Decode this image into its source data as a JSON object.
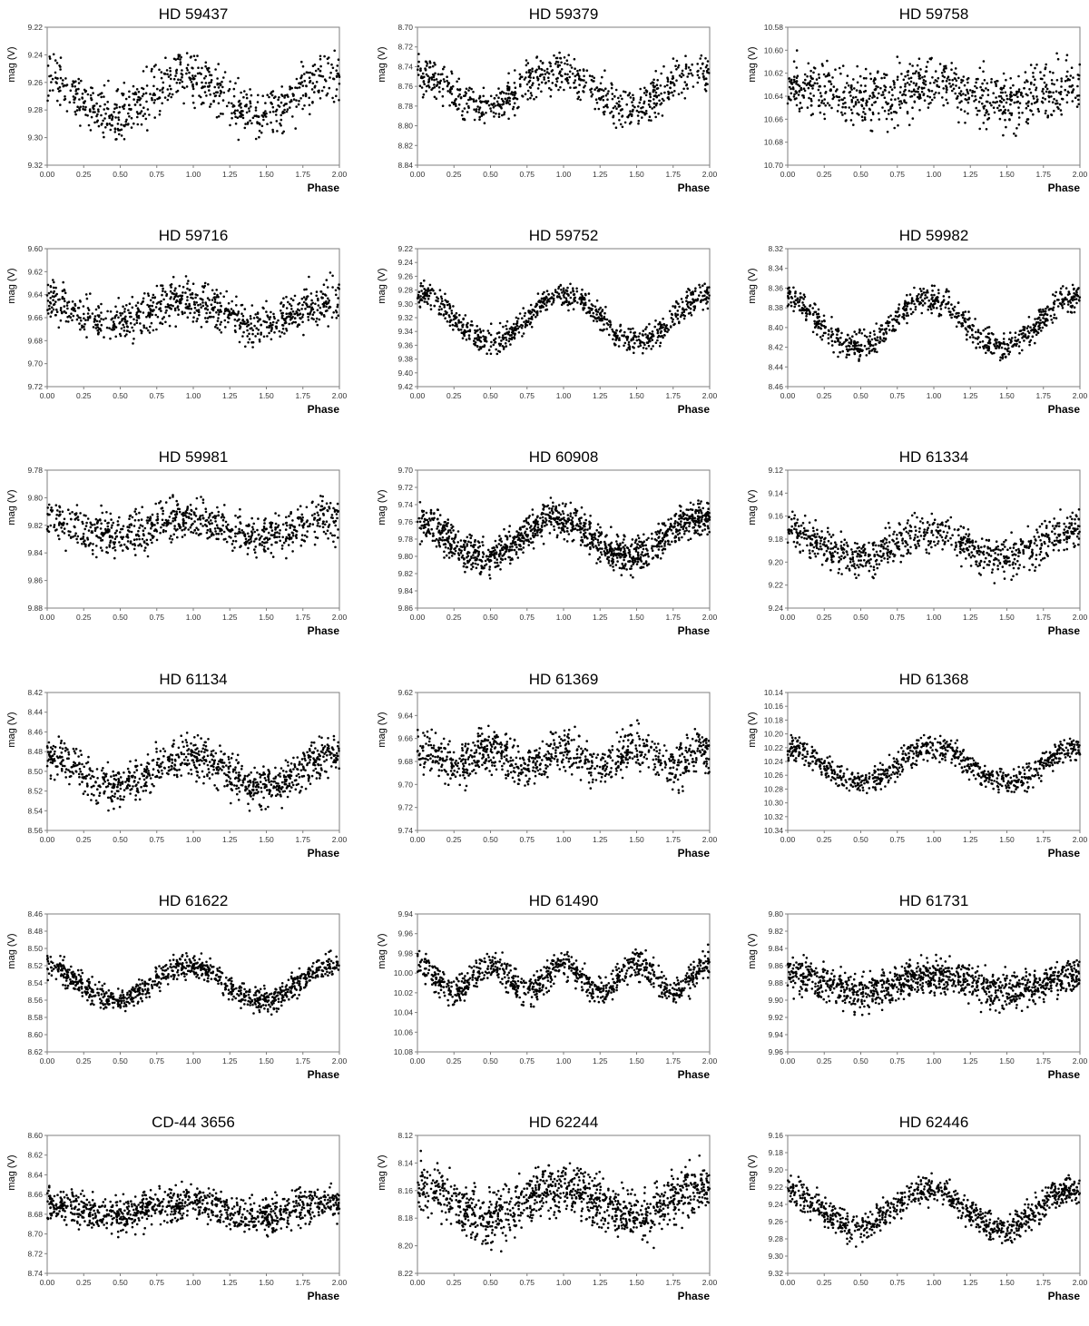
{
  "figure": {
    "xlabel": "Phase",
    "ylabel": "mag (V)",
    "colors": {
      "points": "#000000",
      "frame": "#7f7f7f",
      "background": "#ffffff"
    }
  },
  "chart_data": [
    {
      "type": "scatter",
      "title": "HD 59437",
      "xlabel": "Phase",
      "ylabel": "mag (V)",
      "xlim": [
        0,
        2
      ],
      "ylim": [
        9.32,
        9.22
      ],
      "yticks": [
        "9.22",
        "9.24",
        "9.26",
        "9.28",
        "9.30",
        "9.32"
      ],
      "xticks": [
        "0.00",
        "0.25",
        "0.50",
        "0.75",
        "1.00",
        "1.25",
        "1.50",
        "1.75",
        "2.00"
      ],
      "curve": {
        "mean": 9.27,
        "amplitude": 0.014,
        "peak_phase": 0.95,
        "harmonic": 1,
        "scatter": 0.011,
        "n_points": 700
      }
    },
    {
      "type": "scatter",
      "title": "HD 59379",
      "xlabel": "Phase",
      "ylabel": "mag (V)",
      "xlim": [
        0,
        2
      ],
      "ylim": [
        8.84,
        8.7
      ],
      "yticks": [
        "8.70",
        "8.72",
        "8.74",
        "8.76",
        "8.78",
        "8.80",
        "8.82",
        "8.84"
      ],
      "xticks": [
        "0.00",
        "0.25",
        "0.50",
        "0.75",
        "1.00",
        "1.25",
        "1.50",
        "1.75",
        "2.00"
      ],
      "curve": {
        "mean": 8.763,
        "amplitude": 0.018,
        "peak_phase": 0.95,
        "harmonic": 1,
        "scatter": 0.012,
        "n_points": 700
      }
    },
    {
      "type": "scatter",
      "title": "HD 59758",
      "xlabel": "Phase",
      "ylabel": "mag (V)",
      "xlim": [
        0,
        2
      ],
      "ylim": [
        10.7,
        10.58
      ],
      "yticks": [
        "10.58",
        "10.60",
        "10.62",
        "10.64",
        "10.66",
        "10.68",
        "10.70"
      ],
      "xticks": [
        "0.00",
        "0.25",
        "0.50",
        "0.75",
        "1.00",
        "1.25",
        "1.50",
        "1.75",
        "2.00"
      ],
      "curve": {
        "mean": 10.637,
        "amplitude": 0.008,
        "peak_phase": 1.0,
        "harmonic": 1,
        "scatter": 0.014,
        "n_points": 800
      }
    },
    {
      "type": "scatter",
      "title": "HD 59716",
      "xlabel": "Phase",
      "ylabel": "mag (V)",
      "xlim": [
        0,
        2
      ],
      "ylim": [
        9.72,
        9.6
      ],
      "yticks": [
        "9.60",
        "9.62",
        "9.64",
        "9.66",
        "9.68",
        "9.70",
        "9.72"
      ],
      "xticks": [
        "0.00",
        "0.25",
        "0.50",
        "0.75",
        "1.00",
        "1.25",
        "1.50",
        "1.75",
        "2.00"
      ],
      "curve": {
        "mean": 9.655,
        "amplitude": 0.01,
        "peak_phase": 0.95,
        "harmonic": 1,
        "scatter": 0.011,
        "n_points": 800
      }
    },
    {
      "type": "scatter",
      "title": "HD 59752",
      "xlabel": "Phase",
      "ylabel": "mag (V)",
      "xlim": [
        0,
        2
      ],
      "ylim": [
        9.42,
        9.22
      ],
      "yticks": [
        "9.22",
        "9.24",
        "9.26",
        "9.28",
        "9.30",
        "9.32",
        "9.34",
        "9.36",
        "9.38",
        "9.40",
        "9.42"
      ],
      "xticks": [
        "0.00",
        "0.25",
        "0.50",
        "0.75",
        "1.00",
        "1.25",
        "1.50",
        "1.75",
        "2.00"
      ],
      "curve": {
        "mean": 9.32,
        "amplitude": 0.035,
        "peak_phase": 1.0,
        "harmonic": 1,
        "scatter": 0.011,
        "n_points": 800
      }
    },
    {
      "type": "scatter",
      "title": "HD 59982",
      "xlabel": "Phase",
      "ylabel": "mag (V)",
      "xlim": [
        0,
        2
      ],
      "ylim": [
        8.46,
        8.32
      ],
      "yticks": [
        "8.32",
        "8.34",
        "8.36",
        "8.38",
        "8.40",
        "8.42",
        "8.44",
        "8.46"
      ],
      "xticks": [
        "0.00",
        "0.25",
        "0.50",
        "0.75",
        "1.00",
        "1.25",
        "1.50",
        "1.75",
        "2.00"
      ],
      "curve": {
        "mean": 8.395,
        "amplitude": 0.025,
        "peak_phase": 0.97,
        "harmonic": 1,
        "scatter": 0.008,
        "n_points": 800
      }
    },
    {
      "type": "scatter",
      "title": "HD 59981",
      "xlabel": "Phase",
      "ylabel": "mag (V)",
      "xlim": [
        0,
        2
      ],
      "ylim": [
        9.88,
        9.78
      ],
      "yticks": [
        "9.78",
        "9.80",
        "9.82",
        "9.84",
        "9.86",
        "9.88"
      ],
      "xticks": [
        "0.00",
        "0.25",
        "0.50",
        "0.75",
        "1.00",
        "1.25",
        "1.50",
        "1.75",
        "2.00"
      ],
      "curve": {
        "mean": 9.821,
        "amplitude": 0.006,
        "peak_phase": 0.95,
        "harmonic": 1,
        "scatter": 0.009,
        "n_points": 800
      }
    },
    {
      "type": "scatter",
      "title": "HD 60908",
      "xlabel": "Phase",
      "ylabel": "mag (V)",
      "xlim": [
        0,
        2
      ],
      "ylim": [
        9.86,
        9.7
      ],
      "yticks": [
        "9.70",
        "9.72",
        "9.74",
        "9.76",
        "9.78",
        "9.80",
        "9.82",
        "9.84",
        "9.86"
      ],
      "xticks": [
        "0.00",
        "0.25",
        "0.50",
        "0.75",
        "1.00",
        "1.25",
        "1.50",
        "1.75",
        "2.00"
      ],
      "curve": {
        "mean": 9.778,
        "amplitude": 0.022,
        "peak_phase": 0.95,
        "harmonic": 1,
        "scatter": 0.012,
        "n_points": 1200
      }
    },
    {
      "type": "scatter",
      "title": "HD 61334",
      "xlabel": "Phase",
      "ylabel": "mag (V)",
      "xlim": [
        0,
        2
      ],
      "ylim": [
        9.24,
        9.12
      ],
      "yticks": [
        "9.12",
        "9.14",
        "9.16",
        "9.18",
        "9.20",
        "9.22",
        "9.24"
      ],
      "xticks": [
        "0.00",
        "0.25",
        "0.50",
        "0.75",
        "1.00",
        "1.25",
        "1.50",
        "1.75",
        "2.00"
      ],
      "curve": {
        "mean": 9.185,
        "amplitude": 0.012,
        "peak_phase": 0.97,
        "harmonic": 1,
        "scatter": 0.01,
        "n_points": 800
      }
    },
    {
      "type": "scatter",
      "title": "HD 61134",
      "xlabel": "Phase",
      "ylabel": "mag (V)",
      "xlim": [
        0,
        2
      ],
      "ylim": [
        8.56,
        8.42
      ],
      "yticks": [
        "8.42",
        "8.44",
        "8.46",
        "8.48",
        "8.50",
        "8.52",
        "8.54",
        "8.56"
      ],
      "xticks": [
        "0.00",
        "0.25",
        "0.50",
        "0.75",
        "1.00",
        "1.25",
        "1.50",
        "1.75",
        "2.00"
      ],
      "curve": {
        "mean": 8.5,
        "amplitude": 0.016,
        "peak_phase": 0.97,
        "harmonic": 1,
        "scatter": 0.012,
        "n_points": 900
      }
    },
    {
      "type": "scatter",
      "title": "HD 61369",
      "xlabel": "Phase",
      "ylabel": "mag (V)",
      "xlim": [
        0,
        2
      ],
      "ylim": [
        9.74,
        9.62
      ],
      "yticks": [
        "9.62",
        "9.64",
        "9.66",
        "9.68",
        "9.70",
        "9.72",
        "9.74"
      ],
      "xticks": [
        "0.00",
        "0.25",
        "0.50",
        "0.75",
        "1.00",
        "1.25",
        "1.50",
        "1.75",
        "2.00"
      ],
      "curve": {
        "mean": 9.677,
        "amplitude": 0.008,
        "peak_phase": 1.0,
        "harmonic": 2,
        "scatter": 0.011,
        "n_points": 900
      }
    },
    {
      "type": "scatter",
      "title": "HD 61368",
      "xlabel": "Phase",
      "ylabel": "mag (V)",
      "xlim": [
        0,
        2
      ],
      "ylim": [
        10.34,
        10.14
      ],
      "yticks": [
        "10.14",
        "10.16",
        "10.18",
        "10.20",
        "10.22",
        "10.24",
        "10.26",
        "10.28",
        "10.30",
        "10.32",
        "10.34"
      ],
      "xticks": [
        "0.00",
        "0.25",
        "0.50",
        "0.75",
        "1.00",
        "1.25",
        "1.50",
        "1.75",
        "2.00"
      ],
      "curve": {
        "mean": 10.245,
        "amplitude": 0.025,
        "peak_phase": 1.0,
        "harmonic": 1,
        "scatter": 0.01,
        "n_points": 800
      }
    },
    {
      "type": "scatter",
      "title": "HD 61622",
      "xlabel": "Phase",
      "ylabel": "mag (V)",
      "xlim": [
        0,
        2
      ],
      "ylim": [
        8.62,
        8.46
      ],
      "yticks": [
        "8.46",
        "8.48",
        "8.50",
        "8.52",
        "8.54",
        "8.56",
        "8.58",
        "8.60",
        "8.62"
      ],
      "xticks": [
        "0.00",
        "0.25",
        "0.50",
        "0.75",
        "1.00",
        "1.25",
        "1.50",
        "1.75",
        "2.00"
      ],
      "curve": {
        "mean": 8.54,
        "amplitude": 0.02,
        "peak_phase": 0.97,
        "harmonic": 1,
        "scatter": 0.008,
        "n_points": 900
      }
    },
    {
      "type": "scatter",
      "title": "HD 61490",
      "xlabel": "Phase",
      "ylabel": "mag (V)",
      "xlim": [
        0,
        2
      ],
      "ylim": [
        10.08,
        9.94
      ],
      "yticks": [
        "9.94",
        "9.96",
        "9.98",
        "10.00",
        "10.02",
        "10.04",
        "10.06",
        "10.08"
      ],
      "xticks": [
        "0.00",
        "0.25",
        "0.50",
        "0.75",
        "1.00",
        "1.25",
        "1.50",
        "1.75",
        "2.00"
      ],
      "curve": {
        "mean": 10.005,
        "amplitude": 0.014,
        "peak_phase": 1.0,
        "harmonic": 2,
        "scatter": 0.009,
        "n_points": 900
      }
    },
    {
      "type": "scatter",
      "title": "HD 61731",
      "xlabel": "Phase",
      "ylabel": "mag (V)",
      "xlim": [
        0,
        2
      ],
      "ylim": [
        9.96,
        9.8
      ],
      "yticks": [
        "9.80",
        "9.82",
        "9.84",
        "9.86",
        "9.88",
        "9.90",
        "9.92",
        "9.94",
        "9.96"
      ],
      "xticks": [
        "0.00",
        "0.25",
        "0.50",
        "0.75",
        "1.00",
        "1.25",
        "1.50",
        "1.75",
        "2.00"
      ],
      "curve": {
        "mean": 9.88,
        "amplitude": 0.01,
        "peak_phase": 1.0,
        "harmonic": 1,
        "scatter": 0.012,
        "n_points": 1100
      }
    },
    {
      "type": "scatter",
      "title": "CD-44 3656",
      "xlabel": "Phase",
      "ylabel": "mag (V)",
      "xlim": [
        0,
        2
      ],
      "ylim": [
        8.74,
        8.6
      ],
      "yticks": [
        "8.60",
        "8.62",
        "8.64",
        "8.66",
        "8.68",
        "8.70",
        "8.72",
        "8.74"
      ],
      "xticks": [
        "0.00",
        "0.25",
        "0.50",
        "0.75",
        "1.00",
        "1.25",
        "1.50",
        "1.75",
        "2.00"
      ],
      "curve": {
        "mean": 8.675,
        "amplitude": 0.007,
        "peak_phase": 0.95,
        "harmonic": 1,
        "scatter": 0.01,
        "n_points": 1000
      }
    },
    {
      "type": "scatter",
      "title": "HD 62244",
      "xlabel": "Phase",
      "ylabel": "mag (V)",
      "xlim": [
        0,
        2
      ],
      "ylim": [
        8.22,
        8.12
      ],
      "yticks": [
        "8.12",
        "8.14",
        "8.16",
        "8.18",
        "8.20",
        "8.22"
      ],
      "xticks": [
        "0.00",
        "0.25",
        "0.50",
        "0.75",
        "1.00",
        "1.25",
        "1.50",
        "1.75",
        "2.00"
      ],
      "curve": {
        "mean": 8.168,
        "amplitude": 0.011,
        "peak_phase": 1.0,
        "harmonic": 1,
        "scatter": 0.011,
        "n_points": 1100
      }
    },
    {
      "type": "scatter",
      "title": "HD 62446",
      "xlabel": "Phase",
      "ylabel": "mag (V)",
      "xlim": [
        0,
        2
      ],
      "ylim": [
        9.32,
        9.16
      ],
      "yticks": [
        "9.16",
        "9.18",
        "9.20",
        "9.22",
        "9.24",
        "9.26",
        "9.28",
        "9.30",
        "9.32"
      ],
      "xticks": [
        "0.00",
        "0.25",
        "0.50",
        "0.75",
        "1.00",
        "1.25",
        "1.50",
        "1.75",
        "2.00"
      ],
      "curve": {
        "mean": 9.245,
        "amplitude": 0.022,
        "peak_phase": 0.97,
        "harmonic": 1,
        "scatter": 0.01,
        "n_points": 900
      }
    }
  ]
}
